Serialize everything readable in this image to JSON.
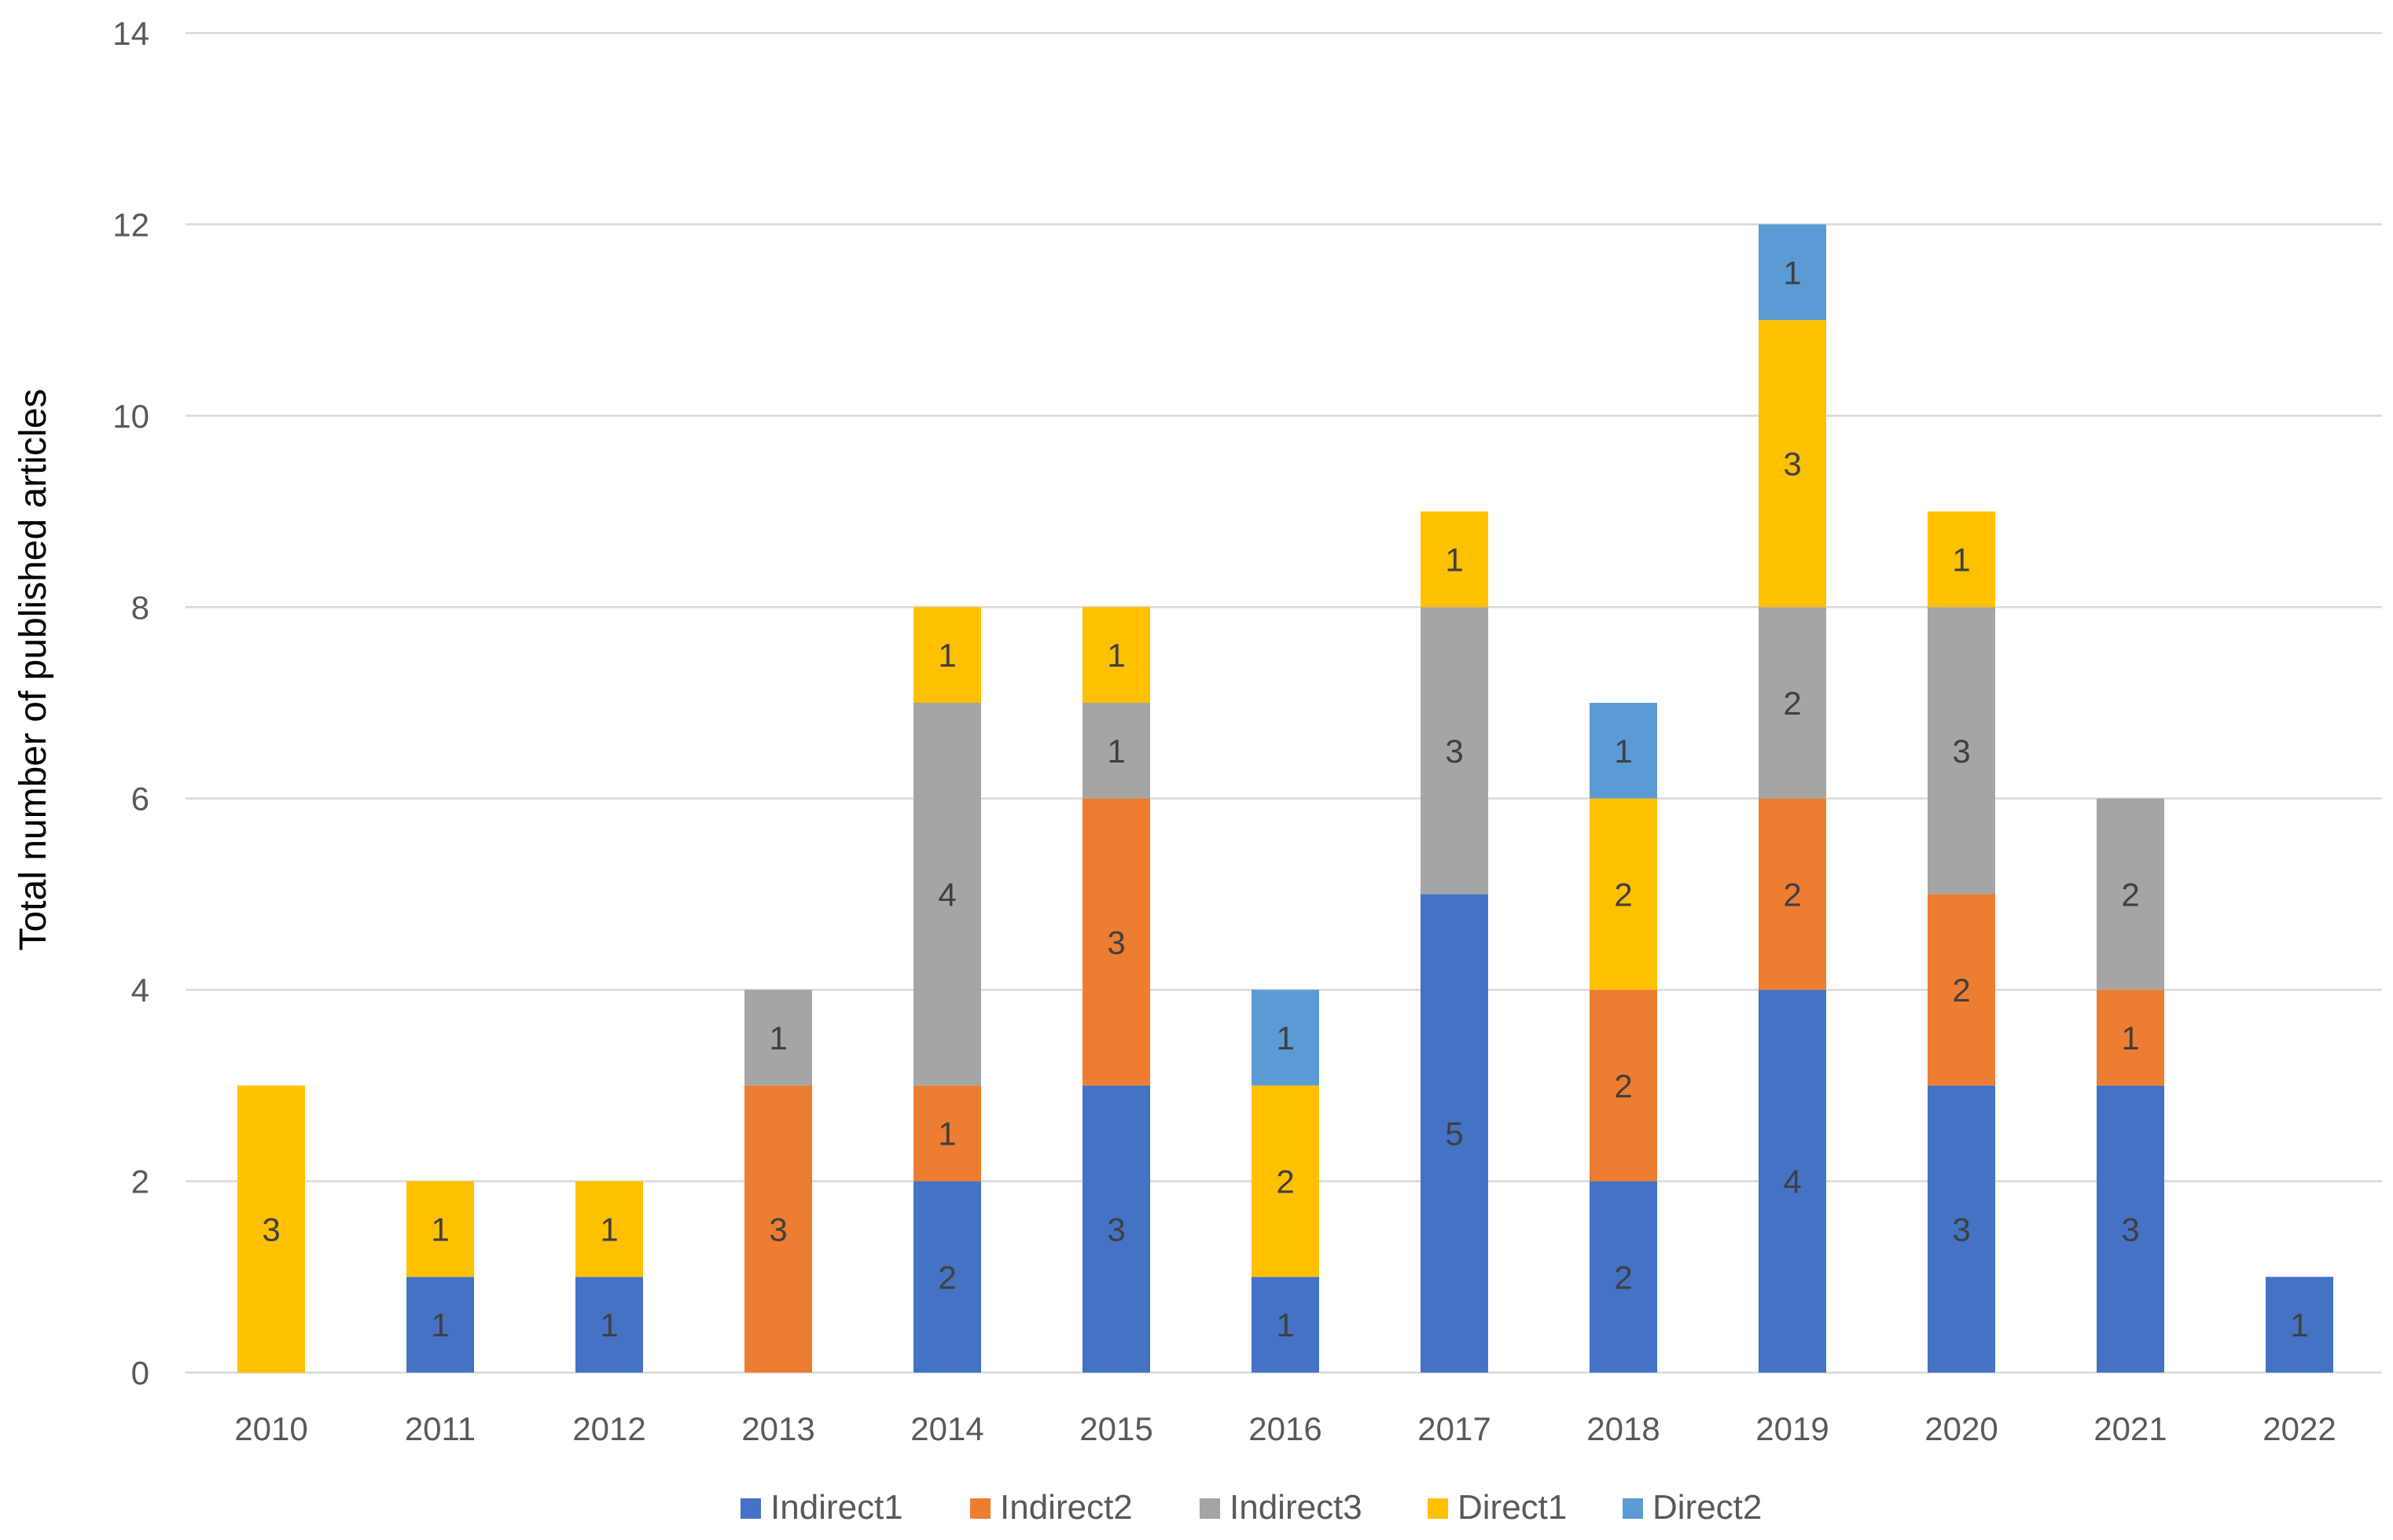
{
  "chart_data": {
    "type": "bar",
    "stacked": true,
    "title": "",
    "xlabel": "",
    "ylabel": "Total number of published articles",
    "ylim": [
      0,
      14
    ],
    "yticks": [
      0,
      2,
      4,
      6,
      8,
      10,
      12,
      14
    ],
    "grid": true,
    "legend_position": "bottom",
    "categories": [
      "2010",
      "2011",
      "2012",
      "2013",
      "2014",
      "2015",
      "2016",
      "2017",
      "2018",
      "2019",
      "2020",
      "2021",
      "2022"
    ],
    "series": [
      {
        "name": "Indirect1",
        "color": "#4472C4",
        "values": [
          0,
          1,
          1,
          0,
          2,
          3,
          1,
          5,
          2,
          4,
          3,
          3,
          1
        ]
      },
      {
        "name": "Indirect2",
        "color": "#ED7D31",
        "values": [
          0,
          0,
          0,
          3,
          1,
          3,
          0,
          0,
          2,
          2,
          2,
          1,
          0
        ]
      },
      {
        "name": "Indirect3",
        "color": "#A5A5A5",
        "values": [
          0,
          0,
          0,
          1,
          4,
          1,
          0,
          3,
          0,
          2,
          3,
          2,
          0
        ]
      },
      {
        "name": "Direct1",
        "color": "#FFC000",
        "values": [
          3,
          1,
          1,
          0,
          1,
          1,
          2,
          1,
          2,
          3,
          1,
          0,
          0
        ]
      },
      {
        "name": "Direct2",
        "color": "#5B9BD5",
        "values": [
          0,
          0,
          0,
          0,
          0,
          0,
          1,
          0,
          1,
          1,
          0,
          0,
          0
        ]
      }
    ]
  }
}
